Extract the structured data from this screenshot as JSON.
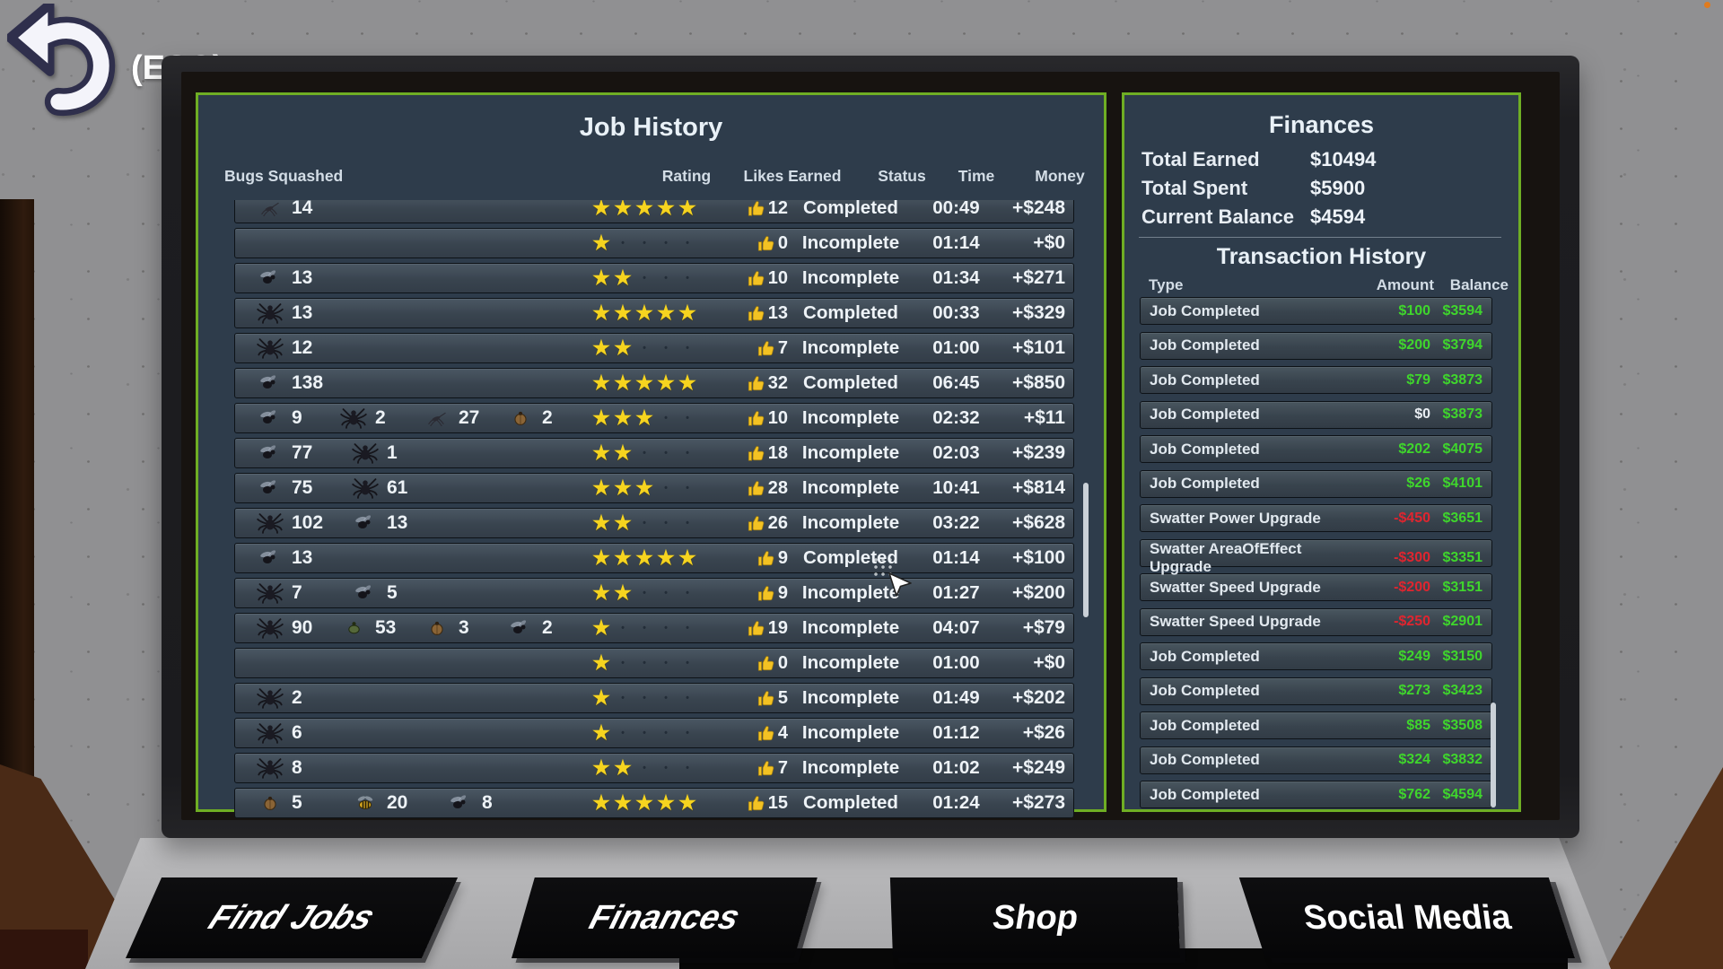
{
  "colors": {
    "panel_border": "#6fae24",
    "panel_bg": "#2e3c4b",
    "money_positive": "#3fd62c",
    "money_negative": "#e0252f",
    "star_yellow": "#f6d41f",
    "screen_text": "#e9f0f6",
    "key_bg": "#0a0a0c",
    "wall": "#909092"
  },
  "esc": {
    "label": "(ESC)"
  },
  "job_history": {
    "title": "Job History",
    "columns": [
      "Bugs Squashed",
      "Rating",
      "Likes Earned",
      "Status",
      "Time",
      "Money"
    ],
    "rows": [
      {
        "bugs": [
          {
            "type": "mosquito",
            "count": "14"
          }
        ],
        "stars": 5,
        "likes": "12",
        "status": "Completed",
        "time": "00:49",
        "money": "+$248"
      },
      {
        "bugs": [],
        "stars": 1,
        "likes": "0",
        "status": "Incomplete",
        "time": "01:14",
        "money": "+$0"
      },
      {
        "bugs": [
          {
            "type": "fly",
            "count": "13"
          }
        ],
        "stars": 2,
        "likes": "10",
        "status": "Incomplete",
        "time": "01:34",
        "money": "+$271"
      },
      {
        "bugs": [
          {
            "type": "spider",
            "count": "13"
          }
        ],
        "stars": 5,
        "likes": "13",
        "status": "Completed",
        "time": "00:33",
        "money": "+$329"
      },
      {
        "bugs": [
          {
            "type": "spider",
            "count": "12"
          }
        ],
        "stars": 2,
        "likes": "7",
        "status": "Incomplete",
        "time": "01:00",
        "money": "+$101"
      },
      {
        "bugs": [
          {
            "type": "fly",
            "count": "138"
          }
        ],
        "stars": 5,
        "likes": "32",
        "status": "Completed",
        "time": "06:45",
        "money": "+$850"
      },
      {
        "bugs": [
          {
            "type": "fly",
            "count": "9"
          },
          {
            "type": "spider",
            "count": "2"
          },
          {
            "type": "mosquito",
            "count": "27"
          },
          {
            "type": "beetle",
            "count": "2"
          }
        ],
        "stars": 3,
        "likes": "10",
        "status": "Incomplete",
        "time": "02:32",
        "money": "+$11"
      },
      {
        "bugs": [
          {
            "type": "fly",
            "count": "77"
          },
          {
            "type": "spider",
            "count": "1"
          }
        ],
        "stars": 2,
        "likes": "18",
        "status": "Incomplete",
        "time": "02:03",
        "money": "+$239"
      },
      {
        "bugs": [
          {
            "type": "fly",
            "count": "75"
          },
          {
            "type": "spider",
            "count": "61"
          }
        ],
        "stars": 3,
        "likes": "28",
        "status": "Incomplete",
        "time": "10:41",
        "money": "+$814"
      },
      {
        "bugs": [
          {
            "type": "spider",
            "count": "102"
          },
          {
            "type": "fly",
            "count": "13"
          }
        ],
        "stars": 2,
        "likes": "26",
        "status": "Incomplete",
        "time": "03:22",
        "money": "+$628"
      },
      {
        "bugs": [
          {
            "type": "fly",
            "count": "13"
          }
        ],
        "stars": 5,
        "likes": "9",
        "status": "Completed",
        "time": "01:14",
        "money": "+$100"
      },
      {
        "bugs": [
          {
            "type": "spider",
            "count": "7"
          },
          {
            "type": "fly",
            "count": "5"
          }
        ],
        "stars": 2,
        "likes": "9",
        "status": "Incomplete",
        "time": "01:27",
        "money": "+$200"
      },
      {
        "bugs": [
          {
            "type": "spider",
            "count": "90"
          },
          {
            "type": "greenbug",
            "count": "53"
          },
          {
            "type": "beetle",
            "count": "3"
          },
          {
            "type": "fly",
            "count": "2"
          }
        ],
        "stars": 1,
        "likes": "19",
        "status": "Incomplete",
        "time": "04:07",
        "money": "+$79"
      },
      {
        "bugs": [],
        "stars": 1,
        "likes": "0",
        "status": "Incomplete",
        "time": "01:00",
        "money": "+$0"
      },
      {
        "bugs": [
          {
            "type": "spider",
            "count": "2"
          }
        ],
        "stars": 1,
        "likes": "5",
        "status": "Incomplete",
        "time": "01:49",
        "money": "+$202"
      },
      {
        "bugs": [
          {
            "type": "spider",
            "count": "6"
          }
        ],
        "stars": 1,
        "likes": "4",
        "status": "Incomplete",
        "time": "01:12",
        "money": "+$26"
      },
      {
        "bugs": [
          {
            "type": "spider",
            "count": "8"
          }
        ],
        "stars": 2,
        "likes": "7",
        "status": "Incomplete",
        "time": "01:02",
        "money": "+$249"
      },
      {
        "bugs": [
          {
            "type": "beetle",
            "count": "5"
          },
          {
            "type": "bee",
            "count": "20"
          },
          {
            "type": "fly",
            "count": "8"
          }
        ],
        "stars": 5,
        "likes": "15",
        "status": "Completed",
        "time": "01:24",
        "money": "+$273"
      }
    ]
  },
  "finances": {
    "title": "Finances",
    "totals": [
      {
        "label": "Total Earned",
        "value": "$10494"
      },
      {
        "label": "Total Spent",
        "value": "$5900"
      },
      {
        "label": "Current Balance",
        "value": "$4594"
      }
    ]
  },
  "transactions": {
    "title": "Transaction History",
    "columns": [
      "Type",
      "Amount",
      "Balance"
    ],
    "rows": [
      {
        "type": "Job Completed",
        "amount": "$100",
        "balance": "$3594"
      },
      {
        "type": "Job Completed",
        "amount": "$200",
        "balance": "$3794"
      },
      {
        "type": "Job Completed",
        "amount": "$79",
        "balance": "$3873"
      },
      {
        "type": "Job Completed",
        "amount": "$0",
        "balance": "$3873"
      },
      {
        "type": "Job Completed",
        "amount": "$202",
        "balance": "$4075"
      },
      {
        "type": "Job Completed",
        "amount": "$26",
        "balance": "$4101"
      },
      {
        "type": "Swatter Power Upgrade",
        "amount": "-$450",
        "balance": "$3651"
      },
      {
        "type": "Swatter AreaOfEffect Upgrade",
        "amount": "-$300",
        "balance": "$3351"
      },
      {
        "type": "Swatter Speed Upgrade",
        "amount": "-$200",
        "balance": "$3151"
      },
      {
        "type": "Swatter Speed Upgrade",
        "amount": "-$250",
        "balance": "$2901"
      },
      {
        "type": "Job Completed",
        "amount": "$249",
        "balance": "$3150"
      },
      {
        "type": "Job Completed",
        "amount": "$273",
        "balance": "$3423"
      },
      {
        "type": "Job Completed",
        "amount": "$85",
        "balance": "$3508"
      },
      {
        "type": "Job Completed",
        "amount": "$324",
        "balance": "$3832"
      },
      {
        "type": "Job Completed",
        "amount": "$762",
        "balance": "$4594"
      }
    ]
  },
  "keyboard": {
    "keys": [
      {
        "label": "Find Jobs"
      },
      {
        "label": "Finances"
      },
      {
        "label": "Shop"
      },
      {
        "label": "Social Media"
      }
    ]
  }
}
